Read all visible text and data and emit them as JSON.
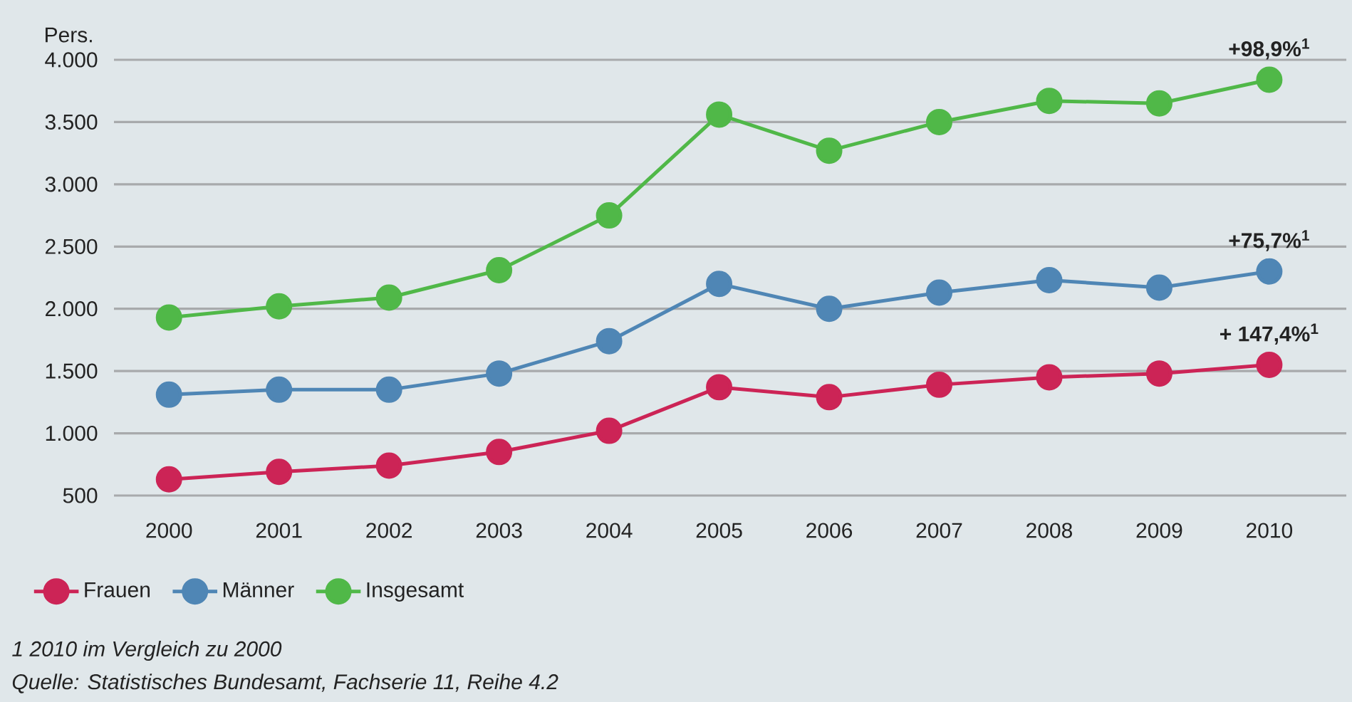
{
  "chart_data": {
    "type": "line",
    "ylabel": "Pers.",
    "categories": [
      "2000",
      "2001",
      "2002",
      "2003",
      "2004",
      "2005",
      "2006",
      "2007",
      "2008",
      "2009",
      "2010"
    ],
    "series": [
      {
        "name": "Frauen",
        "color": "#cc2456",
        "values": [
          630,
          690,
          740,
          850,
          1020,
          1370,
          1290,
          1390,
          1450,
          1480,
          1550
        ]
      },
      {
        "name": "Männer",
        "color": "#4f86b5",
        "values": [
          1310,
          1350,
          1350,
          1480,
          1740,
          2200,
          2000,
          2130,
          2230,
          2170,
          2300
        ]
      },
      {
        "name": "Insgesamt",
        "color": "#50b848",
        "values": [
          1930,
          2020,
          2090,
          2310,
          2750,
          3560,
          3270,
          3500,
          3670,
          3650,
          3840
        ]
      }
    ],
    "ylim": [
      500,
      4000
    ],
    "yticks": [
      {
        "value": 500,
        "label": "500"
      },
      {
        "value": 1000,
        "label": "1.000"
      },
      {
        "value": 1500,
        "label": "1.500"
      },
      {
        "value": 2000,
        "label": "2.000"
      },
      {
        "value": 2500,
        "label": "2.500"
      },
      {
        "value": 3000,
        "label": "3.000"
      },
      {
        "value": 3500,
        "label": "3.500"
      },
      {
        "value": 4000,
        "label": "4.000"
      }
    ],
    "grid": "y",
    "legend": "bottom",
    "marker": "circle",
    "line_style": "solid",
    "annotations": [
      {
        "text": "+98,9%$^{1}$",
        "x": "2010",
        "y": 3840
      },
      {
        "text": "+75,7%$^{1}$",
        "x": "2010",
        "y": 2300
      },
      {
        "text": "+ 147,4%$^{1}$",
        "x": "2010",
        "y": 1550
      },
      "1 2010 im Vergleich zu 2000",
      "Quelle: Statistisches Bundesamt, Fachserie 11, Reihe 4.2"
    ]
  }
}
